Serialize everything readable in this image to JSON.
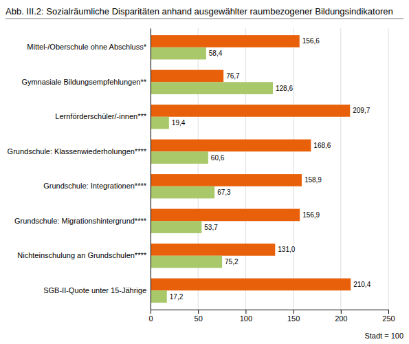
{
  "chart_data": {
    "type": "bar",
    "orientation": "horizontal",
    "title": "Abb. III.2: Sozialräumliche Disparitäten anhand ausgewählter raumbezogener Bildungsindikatoren",
    "categories": [
      "SGB-II-Quote unter 15-Jährige",
      "Nichteinschulung an Grundschulen****",
      "Grundschule: Migrationshintergrund****",
      "Grundschule: Integrationen****",
      "Grundschule: Klassenwiederholungen****",
      "Lernförderschüler/-innen***",
      "Gymnasiale Bildungsempfehlungen**",
      "Mittel-/Oberschule ohne Abschluss*"
    ],
    "series": [
      {
        "color": "#E8610A",
        "values": [
          210.4,
          131.0,
          156.9,
          158.9,
          168.6,
          209.7,
          76.7,
          156.6
        ],
        "value_labels": [
          "210,4",
          "131,0",
          "156,9",
          "158,9",
          "168,6",
          "209,7",
          "76,7",
          "156,6"
        ]
      },
      {
        "color": "#A8C86A",
        "values": [
          17.2,
          75.2,
          53.7,
          67.3,
          60.6,
          19.4,
          128.6,
          58.4
        ],
        "value_labels": [
          "17,2",
          "75,2",
          "53,7",
          "67,3",
          "60,6",
          "19,4",
          "128,6",
          "58,4"
        ]
      }
    ],
    "xlim": [
      0,
      250
    ],
    "xticks": [
      0,
      50,
      100,
      150,
      200,
      250
    ],
    "grid": true,
    "data_labels": true,
    "annotations": [
      "Stadt = 100"
    ]
  }
}
